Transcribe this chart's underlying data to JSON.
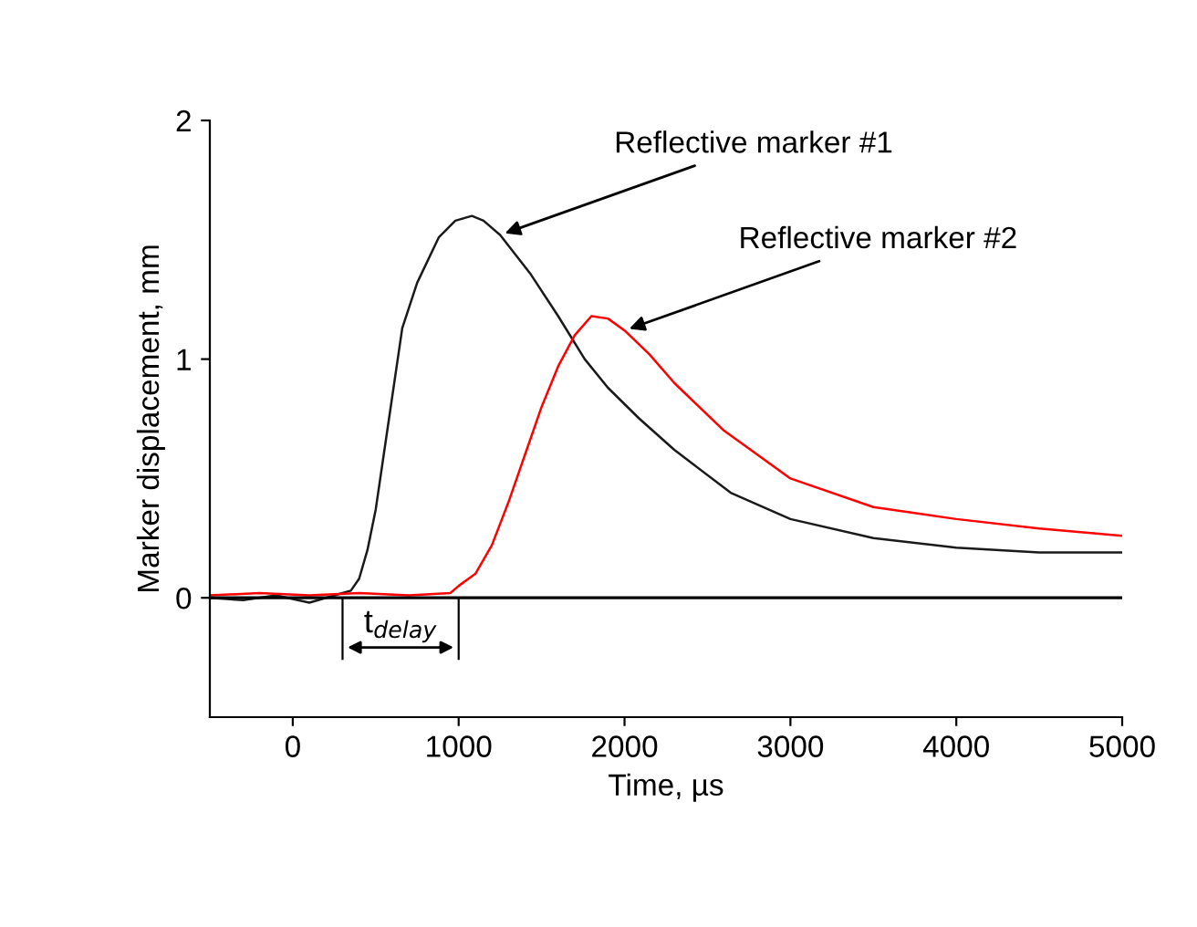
{
  "chart_data": {
    "type": "line",
    "xlabel": "Time, µs",
    "ylabel": "Marker displacement, mm",
    "xlim": [
      -500,
      5000
    ],
    "xticks": [
      0,
      1000,
      2000,
      3000,
      4000,
      5000
    ],
    "ylim": [
      -0.5,
      2
    ],
    "yticks": [
      0,
      1,
      2
    ],
    "grid": false,
    "legend": false,
    "marker": "none",
    "line_style": "solid",
    "series": [
      {
        "name": "Reflective marker #1",
        "color": "#1a1a1a",
        "x": [
          -500,
          -300,
          -100,
          100,
          300,
          350,
          400,
          450,
          500,
          580,
          660,
          750,
          880,
          980,
          1080,
          1150,
          1250,
          1430,
          1600,
          1760,
          1900,
          2090,
          2300,
          2640,
          3000,
          3500,
          4000,
          4500,
          5000
        ],
        "values": [
          0.0,
          -0.01,
          0.01,
          -0.02,
          0.02,
          0.03,
          0.08,
          0.2,
          0.37,
          0.75,
          1.13,
          1.32,
          1.51,
          1.58,
          1.6,
          1.58,
          1.52,
          1.36,
          1.18,
          1.0,
          0.88,
          0.75,
          0.62,
          0.44,
          0.33,
          0.25,
          0.21,
          0.19,
          0.19
        ]
      },
      {
        "name": "Reflective marker #2",
        "color": "#ff0000",
        "x": [
          -500,
          -200,
          100,
          400,
          700,
          950,
          1000,
          1100,
          1200,
          1300,
          1400,
          1500,
          1600,
          1700,
          1800,
          1900,
          2000,
          2150,
          2300,
          2600,
          3000,
          3500,
          4000,
          4500,
          5000
        ],
        "values": [
          0.01,
          0.02,
          0.01,
          0.02,
          0.01,
          0.02,
          0.05,
          0.1,
          0.22,
          0.4,
          0.6,
          0.8,
          0.97,
          1.1,
          1.18,
          1.17,
          1.12,
          1.02,
          0.9,
          0.7,
          0.5,
          0.38,
          0.33,
          0.29,
          0.26
        ]
      }
    ],
    "ref_lines": [
      {
        "axis": "y",
        "value": 0,
        "color": "#000000"
      }
    ],
    "annotations": [
      "t$_{delay}$"
    ]
  }
}
